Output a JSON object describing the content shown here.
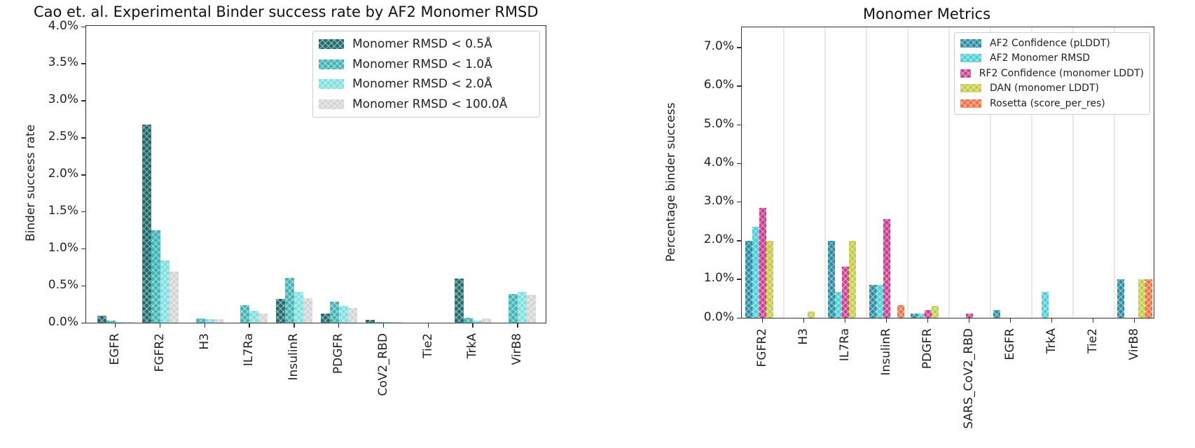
{
  "chart_data": [
    {
      "type": "bar",
      "title": "Cao et. al. Experimental Binder success rate by AF2 Monomer RMSD",
      "xlabel": "",
      "ylabel": "Binder success rate",
      "ylim": [
        0,
        4.0
      ],
      "yticks": [
        "0.0%",
        "0.5%",
        "1.0%",
        "1.5%",
        "2.0%",
        "2.5%",
        "3.0%",
        "3.5%",
        "4.0%"
      ],
      "grid": false,
      "legend_position": "upper right",
      "categories": [
        "EGFR",
        "FGFR2",
        "H3",
        "IL7Ra",
        "InsulinR",
        "PDGFR",
        "CoV2_RBD",
        "Tie2",
        "TrkA",
        "VirB8"
      ],
      "series": [
        {
          "name": "Monomer RMSD < 0.5Å",
          "color": "#1f6b6b",
          "values": [
            0.09,
            2.68,
            0.0,
            0.0,
            0.32,
            0.12,
            0.04,
            0.0,
            0.6,
            0.0
          ]
        },
        {
          "name": "Monomer RMSD < 1.0Å",
          "color": "#3fb4b4",
          "values": [
            0.03,
            1.25,
            0.06,
            0.24,
            0.61,
            0.28,
            0.01,
            0.0,
            0.07,
            0.39
          ]
        },
        {
          "name": "Monomer RMSD < 2.0Å",
          "color": "#7fe0e0",
          "values": [
            0.01,
            0.84,
            0.05,
            0.16,
            0.42,
            0.23,
            0.01,
            0.0,
            0.03,
            0.42
          ]
        },
        {
          "name": "Monomer RMSD < 100.0Å",
          "color": "#d4d4d4",
          "values": [
            0.01,
            0.69,
            0.05,
            0.12,
            0.33,
            0.2,
            0.01,
            0.0,
            0.06,
            0.38
          ]
        }
      ]
    },
    {
      "type": "bar",
      "title": "Monomer Metrics",
      "xlabel": "",
      "ylabel": "Percentage binder success",
      "ylim": [
        0,
        7.5
      ],
      "yticks": [
        "0.0%",
        "1.0%",
        "2.0%",
        "3.0%",
        "4.0%",
        "5.0%",
        "6.0%",
        "7.0%"
      ],
      "grid": "vertical",
      "legend_position": "upper right",
      "categories": [
        "FGFR2",
        "H3",
        "IL7Ra",
        "InsulinR",
        "PDGFR",
        "SARS_CoV2_RBD",
        "EGFR",
        "TrkA",
        "Tie2",
        "VirB8"
      ],
      "series": [
        {
          "name": "AF2 Confidence (pLDDT)",
          "color": "#2a8ca3",
          "values": [
            2.0,
            0.0,
            2.0,
            0.85,
            0.1,
            0.0,
            0.2,
            0.0,
            0.0,
            1.0
          ]
        },
        {
          "name": "AF2 Monomer RMSD",
          "color": "#4dcfd6",
          "values": [
            2.35,
            0.0,
            0.67,
            0.85,
            0.1,
            0.0,
            0.0,
            0.67,
            0.0,
            0.0
          ]
        },
        {
          "name": "RF2 Confidence (monomer LDDT)",
          "color": "#cc3d91",
          "values": [
            2.85,
            0.0,
            1.33,
            2.55,
            0.2,
            0.1,
            0.0,
            0.0,
            0.0,
            0.0
          ]
        },
        {
          "name": "DAN (monomer LDDT)",
          "color": "#c4cc45",
          "values": [
            2.0,
            0.17,
            2.0,
            0.0,
            0.3,
            0.0,
            0.0,
            0.0,
            0.0,
            1.0
          ]
        },
        {
          "name": "Rosetta (score_per_res)",
          "color": "#ee7044",
          "values": [
            0.0,
            0.0,
            0.0,
            0.33,
            0.0,
            0.0,
            0.0,
            0.0,
            0.0,
            1.0
          ]
        }
      ]
    }
  ],
  "left": {
    "title": "Cao et. al. Experimental Binder success rate by AF2 Monomer RMSD",
    "ylabel": "Binder success rate"
  },
  "right": {
    "title": "Monomer Metrics",
    "ylabel": "Percentage binder success"
  }
}
